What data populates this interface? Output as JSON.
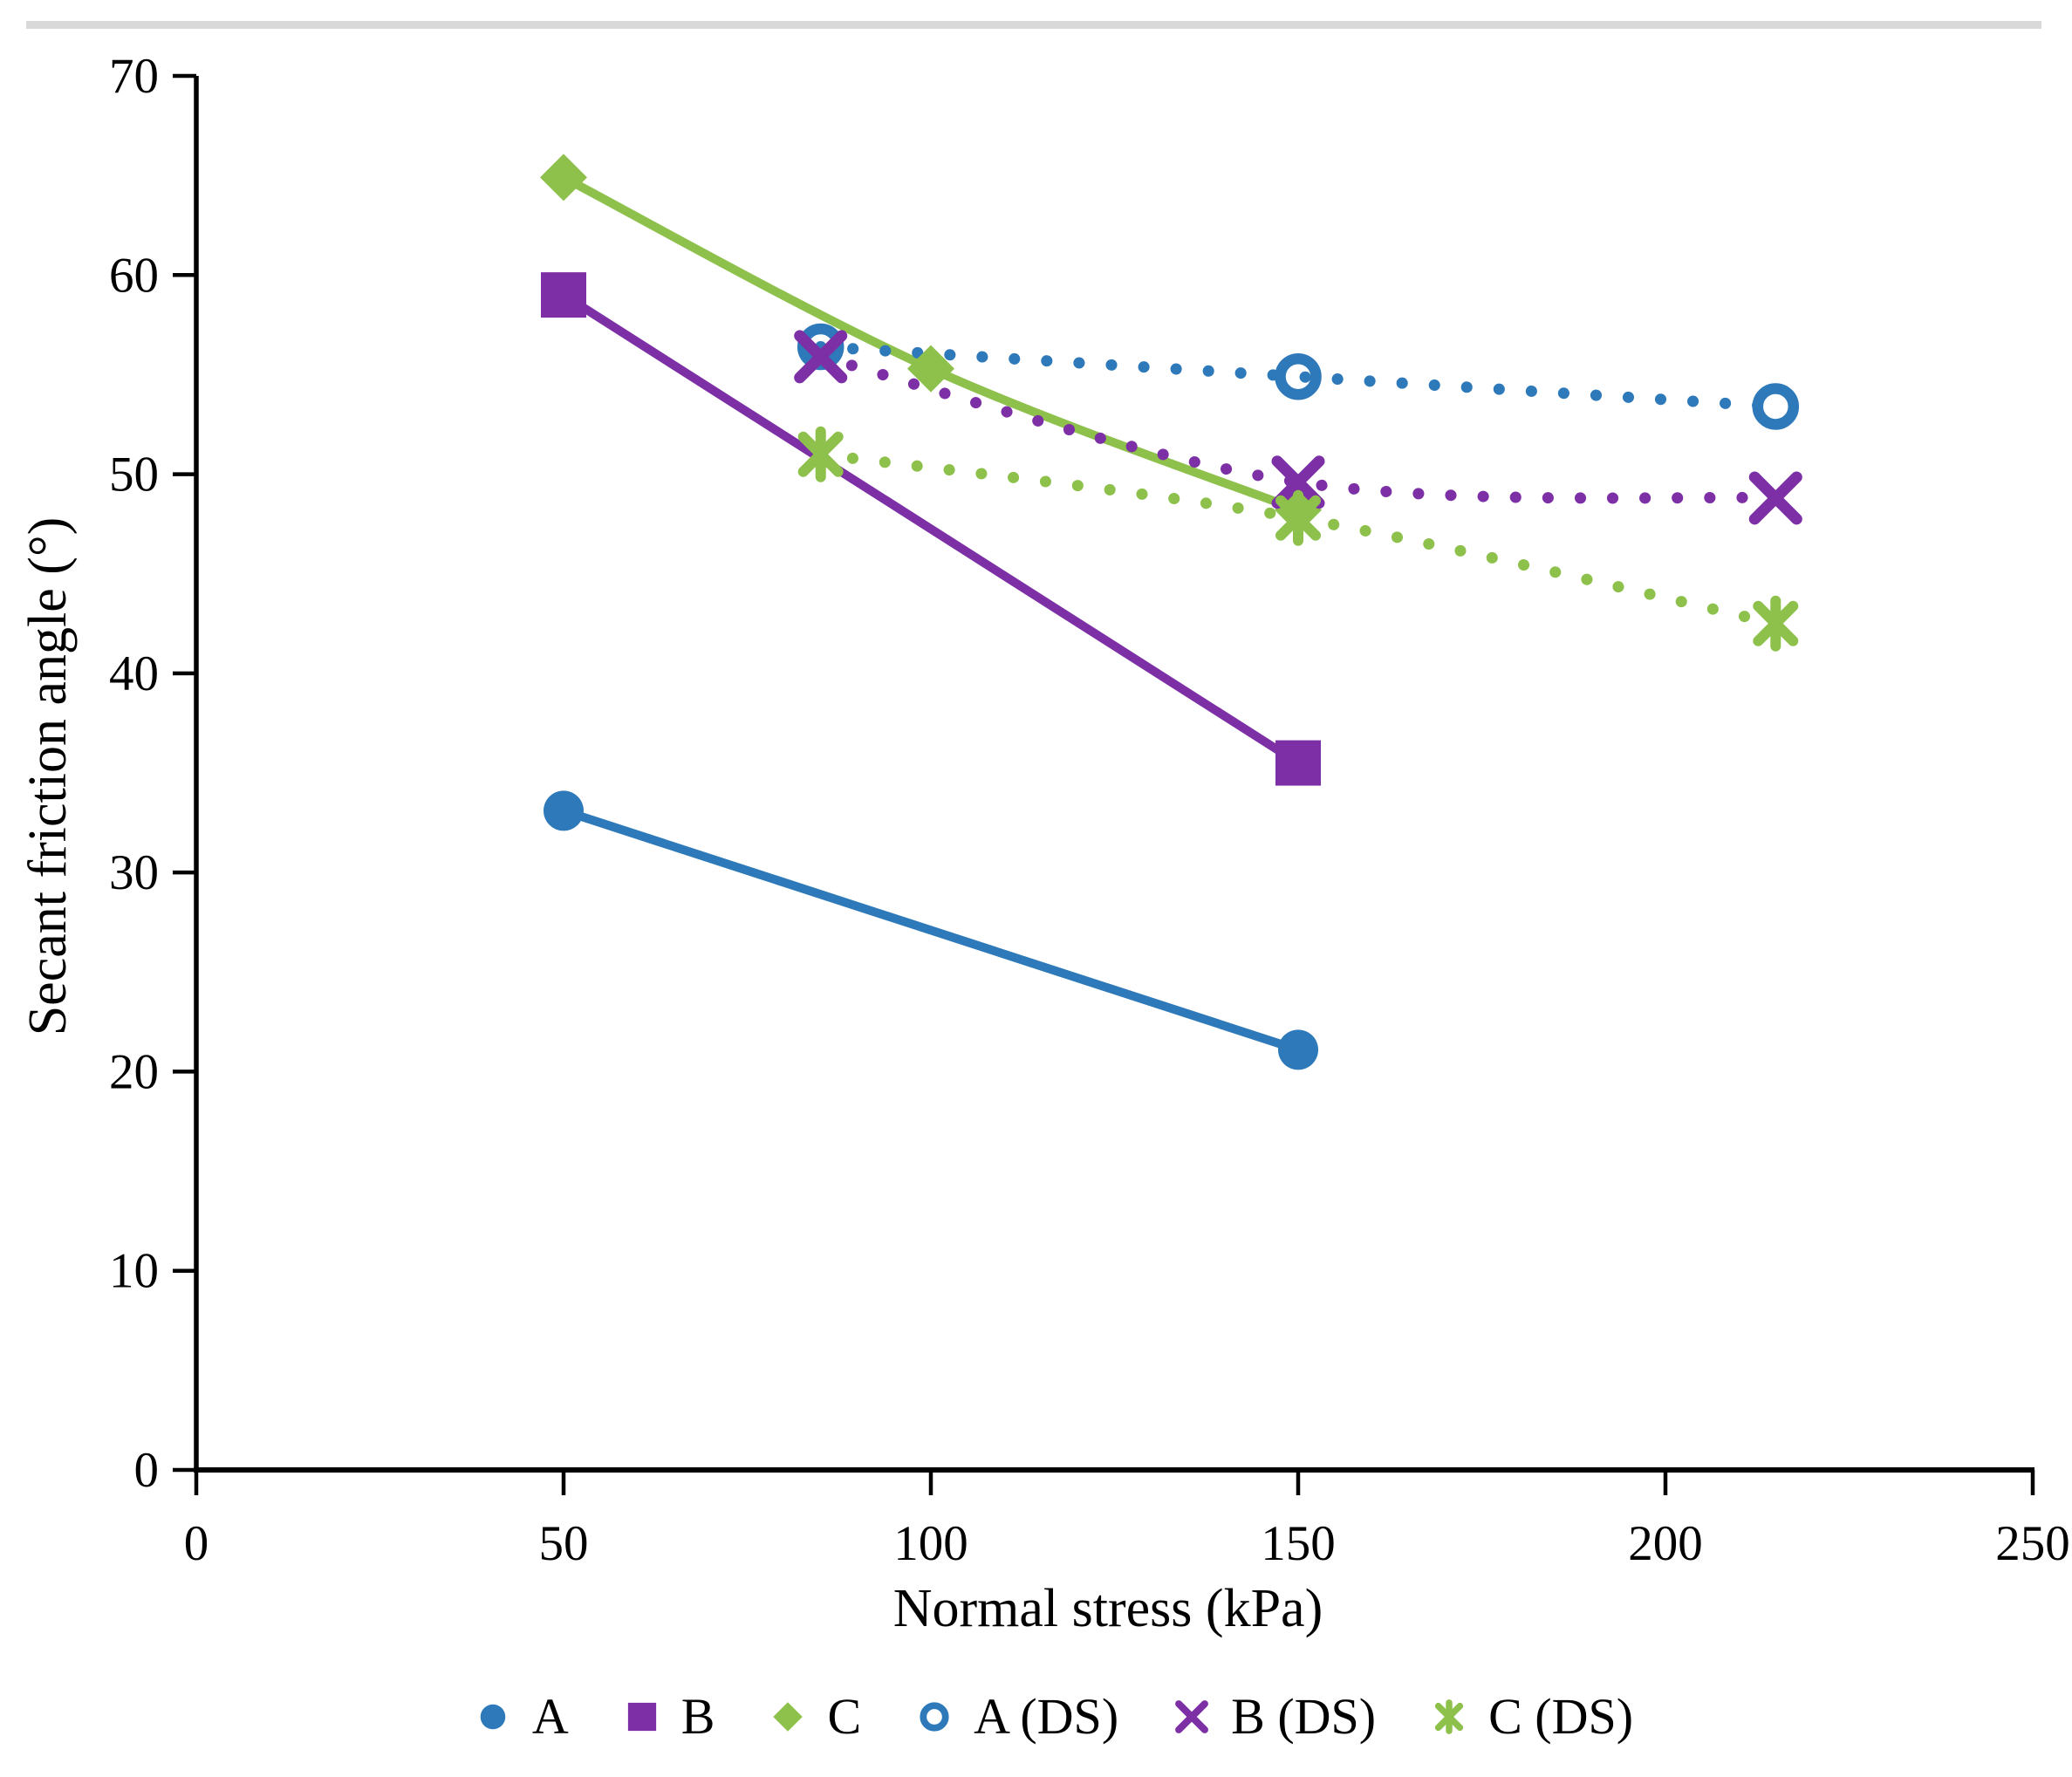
{
  "page": {
    "background": "#ffffff",
    "divider_color": "#D9D9D9"
  },
  "chart_data": {
    "type": "scatter",
    "title": "",
    "xlabel": "Normal stress (kPa)",
    "ylabel": "Secant friction angle (°)",
    "xlim": [
      0,
      250
    ],
    "ylim": [
      0,
      70
    ],
    "x_ticks": [
      0,
      50,
      100,
      150,
      200,
      250
    ],
    "y_ticks": [
      0,
      10,
      20,
      30,
      40,
      50,
      60,
      70
    ],
    "grid": false,
    "legend_position": "bottom",
    "axis_color": "#000000",
    "series": [
      {
        "name": "A",
        "color": "#2E79B9",
        "line": "solid",
        "marker": "circle",
        "points": [
          [
            50,
            33.1
          ],
          [
            150,
            21.1
          ]
        ]
      },
      {
        "name": "B",
        "color": "#7D2FA5",
        "line": "solid",
        "marker": "square",
        "points": [
          [
            50,
            59.0
          ],
          [
            150,
            35.5
          ]
        ]
      },
      {
        "name": "C",
        "color": "#8DC14B",
        "line": "solid",
        "marker": "diamond",
        "points": [
          [
            50,
            64.9
          ],
          [
            100,
            55.3
          ],
          [
            150,
            48.2
          ]
        ]
      },
      {
        "name": "A (DS)",
        "color": "#2E79B9",
        "line": "dotted",
        "marker": "circle-open",
        "points": [
          [
            85,
            56.4
          ],
          [
            150,
            54.9
          ],
          [
            215,
            53.4
          ]
        ]
      },
      {
        "name": "B (DS)",
        "color": "#7D2FA5",
        "line": "dotted",
        "marker": "x",
        "points": [
          [
            85,
            55.9
          ],
          [
            150,
            49.6
          ],
          [
            215,
            48.8
          ]
        ]
      },
      {
        "name": "C (DS)",
        "color": "#8DC14B",
        "line": "dotted",
        "marker": "asterisk",
        "points": [
          [
            85,
            51.0
          ],
          [
            150,
            47.8
          ],
          [
            215,
            42.5
          ]
        ]
      }
    ]
  }
}
